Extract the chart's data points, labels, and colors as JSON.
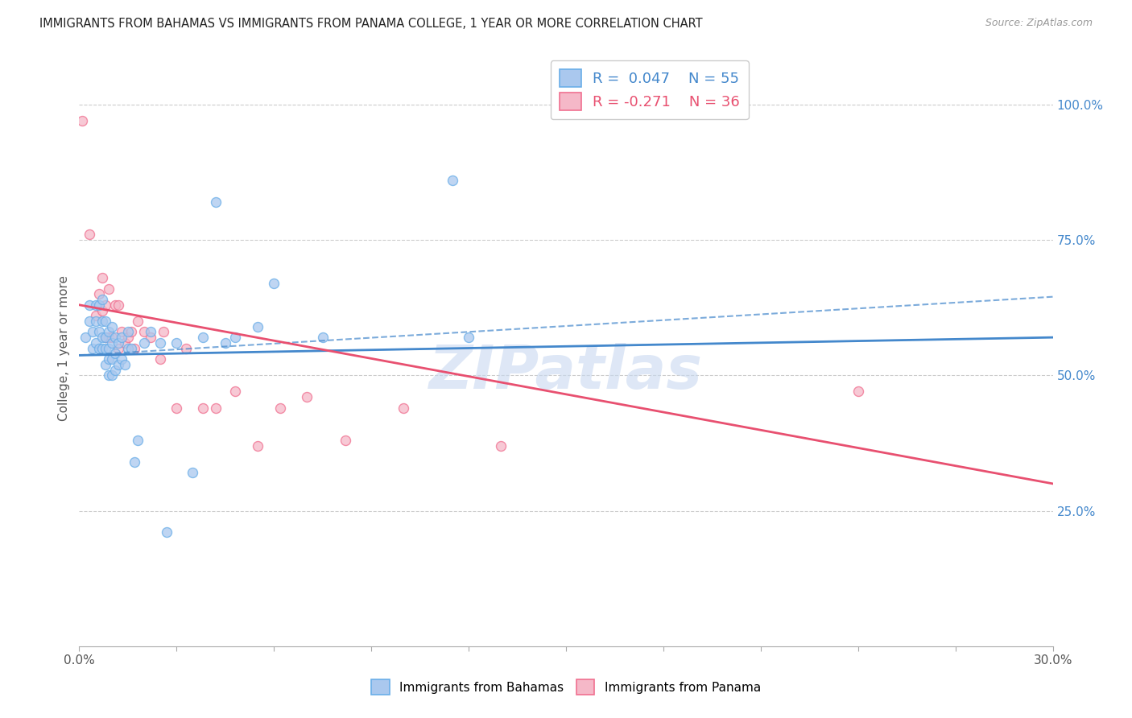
{
  "title": "IMMIGRANTS FROM BAHAMAS VS IMMIGRANTS FROM PANAMA COLLEGE, 1 YEAR OR MORE CORRELATION CHART",
  "source": "Source: ZipAtlas.com",
  "ylabel": "College, 1 year or more",
  "xlim": [
    0.0,
    0.3
  ],
  "ylim": [
    0.0,
    1.1
  ],
  "ytick_labels_right": [
    "100.0%",
    "75.0%",
    "50.0%",
    "25.0%"
  ],
  "ytick_positions_right": [
    1.0,
    0.75,
    0.5,
    0.25
  ],
  "grid_color": "#cccccc",
  "background_color": "#ffffff",
  "bahamas_color": "#aac8ee",
  "panama_color": "#f5b8c8",
  "bahamas_edge_color": "#6aaee8",
  "panama_edge_color": "#f07090",
  "bahamas_line_color": "#4488cc",
  "panama_line_color": "#e85070",
  "legend_text_bahamas": "R =  0.047    N = 55",
  "legend_text_panama": "R = -0.271    N = 36",
  "watermark": "ZIPatlas",
  "watermark_color": "#c8d8f0",
  "bahamas_scatter_x": [
    0.002,
    0.003,
    0.003,
    0.004,
    0.004,
    0.005,
    0.005,
    0.005,
    0.006,
    0.006,
    0.006,
    0.007,
    0.007,
    0.007,
    0.007,
    0.008,
    0.008,
    0.008,
    0.008,
    0.009,
    0.009,
    0.009,
    0.009,
    0.01,
    0.01,
    0.01,
    0.01,
    0.011,
    0.011,
    0.011,
    0.012,
    0.012,
    0.013,
    0.013,
    0.014,
    0.015,
    0.015,
    0.016,
    0.017,
    0.018,
    0.02,
    0.022,
    0.025,
    0.027,
    0.03,
    0.035,
    0.038,
    0.042,
    0.045,
    0.048,
    0.055,
    0.06,
    0.075,
    0.115,
    0.12
  ],
  "bahamas_scatter_y": [
    0.57,
    0.6,
    0.63,
    0.55,
    0.58,
    0.56,
    0.6,
    0.63,
    0.55,
    0.58,
    0.63,
    0.55,
    0.57,
    0.6,
    0.64,
    0.52,
    0.55,
    0.57,
    0.6,
    0.5,
    0.53,
    0.55,
    0.58,
    0.5,
    0.53,
    0.56,
    0.59,
    0.51,
    0.54,
    0.57,
    0.52,
    0.56,
    0.53,
    0.57,
    0.52,
    0.55,
    0.58,
    0.55,
    0.34,
    0.38,
    0.56,
    0.58,
    0.56,
    0.21,
    0.56,
    0.32,
    0.57,
    0.82,
    0.56,
    0.57,
    0.59,
    0.67,
    0.57,
    0.86,
    0.57
  ],
  "panama_scatter_x": [
    0.001,
    0.003,
    0.005,
    0.006,
    0.007,
    0.007,
    0.008,
    0.008,
    0.009,
    0.009,
    0.01,
    0.011,
    0.012,
    0.012,
    0.013,
    0.014,
    0.015,
    0.016,
    0.017,
    0.018,
    0.02,
    0.022,
    0.025,
    0.026,
    0.03,
    0.033,
    0.038,
    0.042,
    0.048,
    0.055,
    0.062,
    0.07,
    0.082,
    0.1,
    0.13,
    0.24
  ],
  "panama_scatter_y": [
    0.97,
    0.76,
    0.61,
    0.65,
    0.62,
    0.68,
    0.57,
    0.63,
    0.57,
    0.66,
    0.57,
    0.63,
    0.55,
    0.63,
    0.58,
    0.56,
    0.57,
    0.58,
    0.55,
    0.6,
    0.58,
    0.57,
    0.53,
    0.58,
    0.44,
    0.55,
    0.44,
    0.44,
    0.47,
    0.37,
    0.44,
    0.46,
    0.38,
    0.44,
    0.37,
    0.47
  ],
  "bahamas_line_x": [
    0.0,
    0.3
  ],
  "bahamas_line_y": [
    0.537,
    0.57
  ],
  "bahamas_dashed_line_x": [
    0.0,
    0.3
  ],
  "bahamas_dashed_line_y": [
    0.537,
    0.645
  ],
  "panama_line_x": [
    0.0,
    0.3
  ],
  "panama_line_y": [
    0.63,
    0.3
  ],
  "marker_size": 75,
  "marker_alpha": 0.75,
  "marker_linewidth": 1.0
}
